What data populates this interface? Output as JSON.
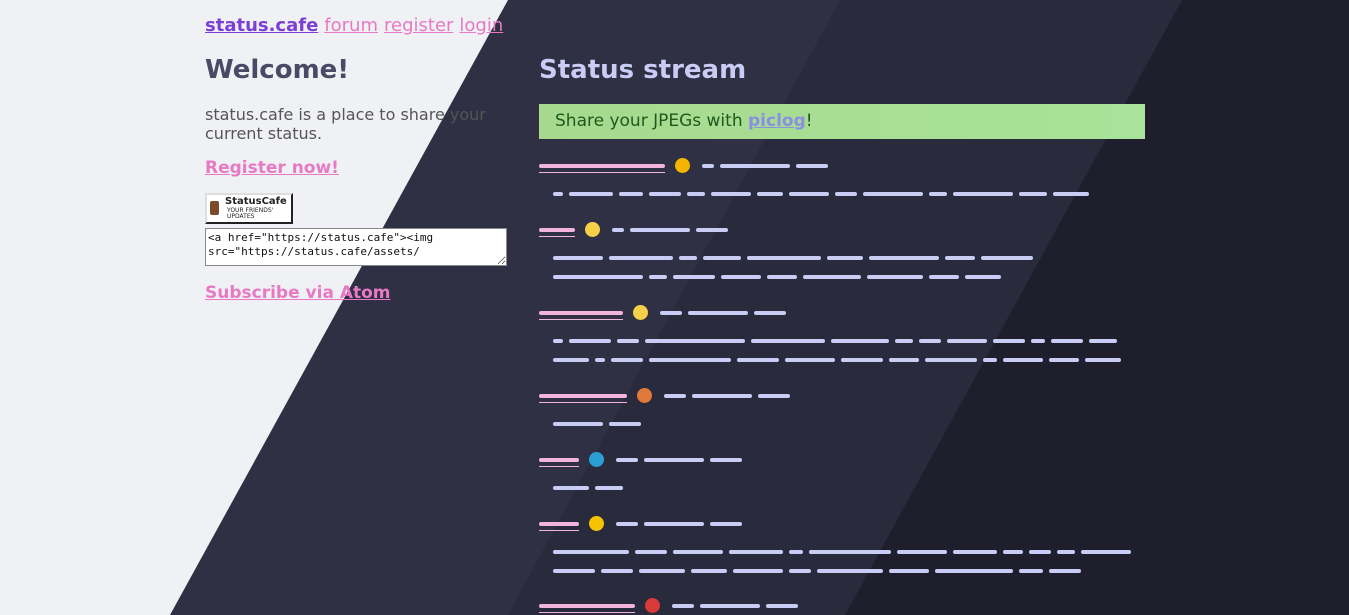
{
  "nav": [
    "status.cafe",
    "forum",
    "register",
    "login"
  ],
  "welcome": {
    "heading": "Welcome!",
    "description": "status.cafe is a place to share your current status.",
    "register": "Register now!",
    "badge": {
      "title": "StatusCafe",
      "subtitle": "YOUR FRIENDS' UPDATES"
    },
    "embed_code": "<a href=\"https://status.cafe\"><img src=\"https://status.cafe/assets/",
    "subscribe": "Subscribe via Atom"
  },
  "stream": {
    "heading": "Status stream",
    "banner": {
      "before": "Share your JPEGs with ",
      "link": "piclog",
      "after": "!"
    }
  }
}
